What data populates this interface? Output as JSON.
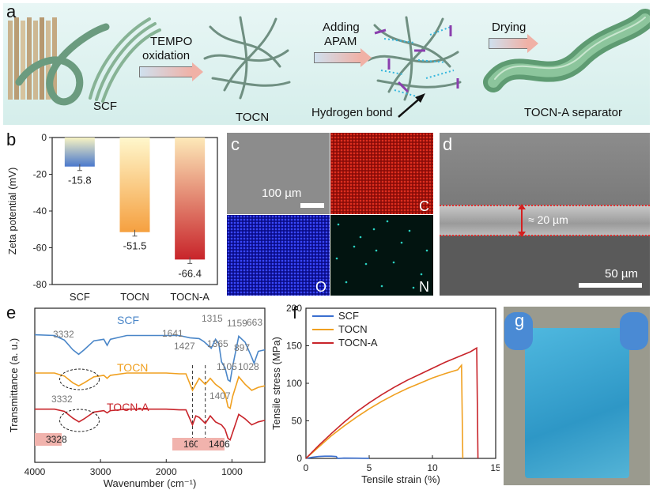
{
  "panels": {
    "a": "a",
    "b": "b",
    "c": "c",
    "d": "d",
    "e": "e",
    "f": "f",
    "g": "g"
  },
  "schematic": {
    "scf": "SCF",
    "tempo_line1": "TEMPO",
    "tempo_line2": "oxidation",
    "tocn": "TOCN",
    "adding_line1": "Adding",
    "adding_line2": "APAM",
    "hydrogen_bond": "Hydrogen bond",
    "drying": "Drying",
    "separator": "TOCN-A separator"
  },
  "micro": {
    "scale_c": "100 µm",
    "map_c": "C",
    "map_o": "O",
    "map_n": "N",
    "thickness": "≈ 20 µm",
    "scale_d": "50 µm"
  },
  "chart_data": [
    {
      "type": "bar",
      "panel": "b",
      "categories": [
        "SCF",
        "TOCN",
        "TOCN-A"
      ],
      "values": [
        -15.8,
        -51.5,
        -66.4
      ],
      "value_labels": [
        "-15.8",
        "-51.5",
        "-66.4"
      ],
      "ylabel": "Zeta potential (mV)",
      "ylim": [
        -80,
        0
      ],
      "yticks": [
        0,
        -20,
        -40,
        -60,
        -80
      ],
      "ytick_labels": [
        "0",
        "-20",
        "-40",
        "-60",
        "-80"
      ],
      "colors": [
        "#4a78cc",
        "#f5a040",
        "#c8242a"
      ]
    },
    {
      "type": "line",
      "panel": "e",
      "xlabel": "Wavenumber (cm⁻¹)",
      "ylabel": "Transmittance (a. u.)",
      "xlim": [
        4000,
        500
      ],
      "xticks": [
        4000,
        3000,
        2000,
        1000
      ],
      "xtick_labels": [
        "4000",
        "3000",
        "2000",
        "1000"
      ],
      "series": [
        {
          "name": "SCF",
          "color": "#4a86c8",
          "points": [
            [
              4000,
              72
            ],
            [
              3700,
              71
            ],
            [
              3550,
              65
            ],
            [
              3420,
              52
            ],
            [
              3332,
              46
            ],
            [
              3250,
              52
            ],
            [
              3100,
              64
            ],
            [
              2950,
              66
            ],
            [
              2900,
              58
            ],
            [
              2850,
              66
            ],
            [
              2600,
              71
            ],
            [
              2000,
              71
            ],
            [
              1800,
              71
            ],
            [
              1641,
              68
            ],
            [
              1500,
              67
            ],
            [
              1427,
              63
            ],
            [
              1365,
              58
            ],
            [
              1315,
              54
            ],
            [
              1250,
              66
            ],
            [
              1200,
              60
            ],
            [
              1159,
              36
            ],
            [
              1105,
              28
            ],
            [
              1060,
              12
            ],
            [
              1028,
              10
            ],
            [
              990,
              30
            ],
            [
              897,
              70
            ],
            [
              800,
              62
            ],
            [
              700,
              42
            ],
            [
              663,
              34
            ],
            [
              600,
              50
            ],
            [
              500,
              52
            ]
          ]
        },
        {
          "name": "TOCN",
          "color": "#f0a020",
          "points": [
            [
              4000,
              21
            ],
            [
              3700,
              21
            ],
            [
              3550,
              17
            ],
            [
              3420,
              8
            ],
            [
              3332,
              4
            ],
            [
              3250,
              8
            ],
            [
              3100,
              16
            ],
            [
              2950,
              18
            ],
            [
              2900,
              14
            ],
            [
              2850,
              18
            ],
            [
              2600,
              21
            ],
            [
              2000,
              21
            ],
            [
              1800,
              20
            ],
            [
              1700,
              20
            ],
            [
              1600,
              -2
            ],
            [
              1500,
              14
            ],
            [
              1407,
              6
            ],
            [
              1330,
              14
            ],
            [
              1250,
              6
            ],
            [
              1159,
              0
            ],
            [
              1105,
              -6
            ],
            [
              1060,
              -24
            ],
            [
              1028,
              -26
            ],
            [
              990,
              -10
            ],
            [
              897,
              16
            ],
            [
              800,
              6
            ],
            [
              700,
              -2
            ],
            [
              600,
              2
            ],
            [
              500,
              4
            ]
          ]
        },
        {
          "name": "TOCN-A",
          "color": "#c8242a",
          "points": [
            [
              4000,
              -27
            ],
            [
              3700,
              -27
            ],
            [
              3550,
              -30
            ],
            [
              3420,
              -39
            ],
            [
              3328,
              -44
            ],
            [
              3250,
              -40
            ],
            [
              3100,
              -31
            ],
            [
              2950,
              -29
            ],
            [
              2900,
              -32
            ],
            [
              2850,
              -29
            ],
            [
              2600,
              -27
            ],
            [
              2000,
              -27
            ],
            [
              1800,
              -28
            ],
            [
              1700,
              -28
            ],
            [
              1600,
              -48
            ],
            [
              1550,
              -36
            ],
            [
              1500,
              -38
            ],
            [
              1406,
              -46
            ],
            [
              1330,
              -36
            ],
            [
              1250,
              -44
            ],
            [
              1159,
              -48
            ],
            [
              1105,
              -54
            ],
            [
              1060,
              -66
            ],
            [
              1028,
              -68
            ],
            [
              990,
              -58
            ],
            [
              897,
              -34
            ],
            [
              800,
              -40
            ],
            [
              700,
              -48
            ],
            [
              600,
              -44
            ],
            [
              500,
              -42
            ]
          ]
        }
      ],
      "annotations": [
        "3332",
        "1641",
        "1427",
        "1365",
        "1315",
        "1159",
        "663",
        "897",
        "1105",
        "1028",
        "3332",
        "1407",
        "3328",
        "1600",
        "1406"
      ],
      "highlighted": [
        "3328",
        "1600",
        "1406"
      ]
    },
    {
      "type": "line",
      "panel": "f",
      "xlabel": "Tensile strain (%)",
      "ylabel": "Tensile stress (MPa)",
      "xlim": [
        0,
        15
      ],
      "ylim": [
        0,
        200
      ],
      "xticks": [
        0,
        5,
        10,
        15
      ],
      "yticks": [
        0,
        50,
        100,
        150,
        200
      ],
      "legend_position": "top-left",
      "series": [
        {
          "name": "SCF",
          "color": "#3a6fd0",
          "points": [
            [
              0,
              0
            ],
            [
              0.5,
              1.5
            ],
            [
              1,
              2.5
            ],
            [
              1.5,
              3
            ],
            [
              2,
              3
            ],
            [
              2.4,
              2.5
            ],
            [
              2.5,
              0
            ],
            [
              3,
              0.4
            ],
            [
              4,
              0.3
            ],
            [
              5,
              0.1
            ]
          ]
        },
        {
          "name": "TOCN",
          "color": "#f0a020",
          "points": [
            [
              0,
              0
            ],
            [
              1,
              15
            ],
            [
              2,
              30
            ],
            [
              3,
              43
            ],
            [
              4,
              55
            ],
            [
              5,
              66
            ],
            [
              6,
              76
            ],
            [
              7,
              85
            ],
            [
              8,
              93
            ],
            [
              9,
              100
            ],
            [
              10,
              107
            ],
            [
              11,
              113
            ],
            [
              12,
              118
            ],
            [
              12.3,
              124
            ],
            [
              12.4,
              0
            ]
          ]
        },
        {
          "name": "TOCN-A",
          "color": "#c8242a",
          "points": [
            [
              0,
              0
            ],
            [
              1,
              17
            ],
            [
              2,
              33
            ],
            [
              3,
              48
            ],
            [
              4,
              62
            ],
            [
              5,
              74
            ],
            [
              6,
              85
            ],
            [
              7,
              95
            ],
            [
              8,
              104
            ],
            [
              9,
              112
            ],
            [
              10,
              120
            ],
            [
              11,
              128
            ],
            [
              12,
              135
            ],
            [
              13,
              142
            ],
            [
              13.5,
              147
            ],
            [
              13.6,
              0
            ]
          ]
        }
      ]
    }
  ]
}
